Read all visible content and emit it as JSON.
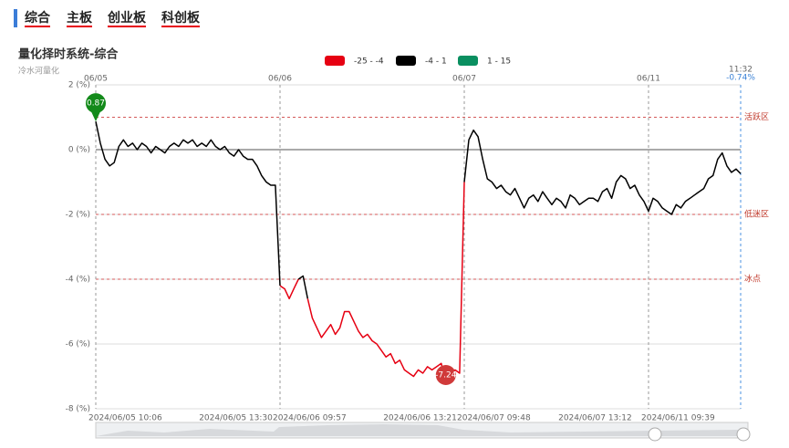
{
  "tabs": [
    "综合",
    "主板",
    "创业板",
    "科创板"
  ],
  "chart_data": {
    "type": "line",
    "title": "量化择时系统-综合",
    "subtitle": "冷水河量化",
    "categories": [
      "2024/06/05 10:06",
      null,
      null,
      null,
      null,
      null,
      null,
      null,
      null,
      null,
      null,
      null,
      null,
      null,
      null,
      null,
      null,
      null,
      null,
      null,
      null,
      null,
      null,
      null,
      "2024/06/05 13:30",
      null,
      null,
      null,
      null,
      null,
      null,
      null,
      null,
      null,
      null,
      null,
      null,
      null,
      null,
      null,
      "2024/06/06 09:57",
      null,
      null,
      null,
      null,
      null,
      null,
      null,
      null,
      null,
      null,
      null,
      null,
      null,
      null,
      null,
      null,
      null,
      null,
      null,
      null,
      null,
      null,
      null,
      "2024/06/06 13:21",
      null,
      null,
      null,
      null,
      null,
      null,
      null,
      null,
      null,
      null,
      null,
      null,
      null,
      null,
      null,
      "2024/06/07 09:48",
      null,
      null,
      null,
      null,
      null,
      null,
      null,
      null,
      null,
      null,
      null,
      null,
      null,
      null,
      null,
      null,
      null,
      null,
      null,
      null,
      null,
      "2024/06/07 13:12",
      null,
      null,
      null,
      null,
      null,
      null,
      null,
      null,
      null,
      null,
      null,
      null,
      null,
      null,
      null,
      null,
      null,
      "2024/06/11 09:39",
      null,
      null,
      null,
      null,
      null,
      null,
      null,
      null,
      null,
      null,
      null,
      null,
      null,
      null,
      null,
      null,
      null,
      null,
      null,
      null
    ],
    "top_categories": [
      "06/05",
      null,
      null,
      null,
      null,
      null,
      null,
      null,
      null,
      null,
      null,
      null,
      null,
      null,
      null,
      null,
      null,
      null,
      null,
      null,
      null,
      null,
      null,
      null,
      null,
      null,
      null,
      null,
      null,
      null,
      null,
      null,
      null,
      null,
      null,
      null,
      null,
      null,
      null,
      null,
      "06/06",
      null,
      null,
      null,
      null,
      null,
      null,
      null,
      null,
      null,
      null,
      null,
      null,
      null,
      null,
      null,
      null,
      null,
      null,
      null,
      null,
      null,
      null,
      null,
      null,
      null,
      null,
      null,
      null,
      null,
      null,
      null,
      null,
      null,
      null,
      null,
      null,
      null,
      null,
      null,
      "06/07",
      null,
      null,
      null,
      null,
      null,
      null,
      null,
      null,
      null,
      null,
      null,
      null,
      null,
      null,
      null,
      null,
      null,
      null,
      null,
      null,
      null,
      null,
      null,
      null,
      null,
      null,
      null,
      null,
      null,
      null,
      null,
      null,
      null,
      null,
      null,
      null,
      null,
      null,
      null,
      "06/11",
      null,
      null,
      null,
      null,
      null,
      null,
      null,
      null,
      null,
      null,
      null,
      null,
      null,
      null,
      null,
      null,
      null,
      null,
      null,
      "11:32"
    ],
    "series": [
      {
        "values": [
          0.87,
          0.2,
          -0.3,
          -0.5,
          -0.4,
          0.1,
          0.3,
          0.1,
          0.2,
          0.0,
          0.2,
          0.1,
          -0.1,
          0.1,
          0.0,
          -0.1,
          0.1,
          0.2,
          0.1,
          0.3,
          0.2,
          0.3,
          0.1,
          0.2,
          0.1,
          0.3,
          0.1,
          0.0,
          0.1,
          -0.1,
          -0.2,
          0.0,
          -0.2,
          -0.3,
          -0.3,
          -0.5,
          -0.8,
          -1.0,
          -1.1,
          -1.1,
          -4.2,
          -4.3,
          -4.6,
          -4.3,
          -4.0,
          -3.9,
          -4.6,
          -5.2,
          -5.5,
          -5.8,
          -5.6,
          -5.4,
          -5.7,
          -5.5,
          -5.0,
          -5.0,
          -5.3,
          -5.6,
          -5.8,
          -5.7,
          -5.9,
          -6.0,
          -6.2,
          -6.4,
          -6.3,
          -6.6,
          -6.5,
          -6.8,
          -6.9,
          -7.0,
          -6.8,
          -6.9,
          -6.7,
          -6.8,
          -6.7,
          -6.6,
          -7.24,
          -7.0,
          -6.8,
          -6.9,
          -1.0,
          0.3,
          0.6,
          0.4,
          -0.3,
          -0.9,
          -1.0,
          -1.2,
          -1.1,
          -1.3,
          -1.4,
          -1.2,
          -1.5,
          -1.8,
          -1.5,
          -1.4,
          -1.6,
          -1.3,
          -1.5,
          -1.7,
          -1.5,
          -1.6,
          -1.8,
          -1.4,
          -1.5,
          -1.7,
          -1.6,
          -1.5,
          -1.5,
          -1.6,
          -1.3,
          -1.2,
          -1.5,
          -1.0,
          -0.8,
          -0.9,
          -1.2,
          -1.1,
          -1.4,
          -1.6,
          -1.9,
          -1.5,
          -1.6,
          -1.8,
          -1.9,
          -2.0,
          -1.7,
          -1.8,
          -1.6,
          -1.5,
          -1.4,
          -1.3,
          -1.2,
          -0.9,
          -0.8,
          -0.3,
          -0.1,
          -0.5,
          -0.7,
          -0.6,
          -0.74
        ],
        "value_labels": [
          "0.87",
          null,
          null,
          null,
          null,
          null,
          null,
          null,
          null,
          null,
          null,
          null,
          null,
          null,
          null,
          null,
          null,
          null,
          null,
          null,
          null,
          null,
          null,
          null,
          null,
          null,
          null,
          null,
          null,
          null,
          null,
          null,
          null,
          null,
          null,
          null,
          null,
          null,
          null,
          null,
          null,
          null,
          null,
          null,
          null,
          null,
          null,
          null,
          null,
          null,
          null,
          null,
          null,
          null,
          null,
          null,
          null,
          null,
          null,
          null,
          null,
          null,
          null,
          null,
          null,
          null,
          null,
          null,
          null,
          null,
          null,
          null,
          null,
          null,
          null,
          null,
          "-7.24",
          null,
          null,
          null,
          null,
          null,
          null,
          null,
          null,
          null,
          null,
          null,
          null,
          null,
          null,
          null,
          null,
          null,
          null,
          null,
          null,
          null,
          null,
          null,
          null,
          null,
          null,
          null,
          null,
          null,
          null,
          null,
          null,
          null,
          null,
          null,
          null,
          null,
          null,
          null,
          null,
          null,
          null,
          null,
          null,
          null,
          null,
          null,
          null,
          null,
          null,
          null,
          null,
          null,
          null,
          null,
          null,
          null,
          null,
          null,
          null,
          null,
          null,
          null,
          "-0.74%"
        ]
      }
    ],
    "ranges": [
      {
        "name": "-25 - -4",
        "color": "#e60012",
        "min": -25,
        "max": -4
      },
      {
        "name": "-4 - 1",
        "color": "#000000",
        "min": -4,
        "max": 1
      },
      {
        "name": "1 - 15",
        "color": "#0a8f60",
        "min": 1,
        "max": 15
      }
    ],
    "ylim": [
      -8,
      2
    ],
    "yticks": [
      {
        "value": 2,
        "label": "2 (%)"
      },
      {
        "value": 0,
        "label": "0 (%)"
      },
      {
        "value": -2,
        "label": "-2 (%)"
      },
      {
        "value": -4,
        "label": "-4 (%)"
      },
      {
        "value": -6,
        "label": "-6 (%)"
      },
      {
        "value": -8,
        "label": "-8 (%)"
      }
    ],
    "ref_lines": [
      {
        "value": 1,
        "label": "活跃区"
      },
      {
        "value": -2,
        "label": "低迷区"
      },
      {
        "value": -4,
        "label": "冰点"
      }
    ]
  }
}
